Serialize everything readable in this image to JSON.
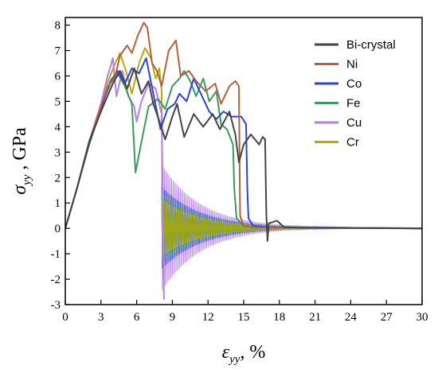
{
  "chart_data": {
    "type": "line",
    "title": "",
    "xlabel": {
      "symbol": "ε",
      "sub": "yy",
      "unit": ", %"
    },
    "ylabel": {
      "symbol": "σ",
      "sub": "yy",
      "unit": " , GPa"
    },
    "xlim": [
      0,
      30
    ],
    "ylim": [
      -3,
      8.3
    ],
    "xticks": [
      0,
      3,
      6,
      9,
      12,
      15,
      18,
      21,
      24,
      27,
      30
    ],
    "yticks": [
      -3,
      -2,
      -1,
      0,
      1,
      2,
      3,
      4,
      5,
      6,
      7,
      8
    ],
    "grid": false,
    "legend_position": "top-right",
    "series": [
      {
        "name": "Bi-crystal",
        "color": "#444444",
        "points": [
          [
            0,
            0
          ],
          [
            1,
            1.6
          ],
          [
            2,
            3.4
          ],
          [
            3,
            4.6
          ],
          [
            4,
            5.7
          ],
          [
            4.6,
            6.2
          ],
          [
            5.2,
            5.5
          ],
          [
            5.8,
            6.3
          ],
          [
            6.4,
            5.3
          ],
          [
            7,
            5.8
          ],
          [
            7.4,
            4.9
          ],
          [
            8,
            4.1
          ],
          [
            8.4,
            3.5
          ],
          [
            9,
            4.4
          ],
          [
            9.4,
            4.9
          ],
          [
            10,
            3.6
          ],
          [
            10.8,
            4.5
          ],
          [
            11.6,
            4.0
          ],
          [
            12.4,
            4.5
          ],
          [
            13,
            3.9
          ],
          [
            13.8,
            4.6
          ],
          [
            14.3,
            3.7
          ],
          [
            14.6,
            2.6
          ],
          [
            15,
            3.3
          ],
          [
            15.6,
            3.7
          ],
          [
            16.3,
            3.3
          ],
          [
            16.6,
            3.6
          ],
          [
            16.8,
            3.5
          ],
          [
            16.9,
            0.6
          ],
          [
            17,
            -0.5
          ],
          [
            17.1,
            0.2
          ],
          [
            17.8,
            0.3
          ],
          [
            18.4,
            0.05
          ],
          [
            20,
            0.02
          ],
          [
            30,
            0
          ]
        ]
      },
      {
        "name": "Ni",
        "color": "#b5603c",
        "points": [
          [
            0,
            0
          ],
          [
            1,
            1.6
          ],
          [
            2,
            3.4
          ],
          [
            3,
            4.8
          ],
          [
            3.6,
            5.6
          ],
          [
            4.2,
            6.0
          ],
          [
            4.6,
            6.8
          ],
          [
            5.2,
            7.2
          ],
          [
            5.6,
            6.9
          ],
          [
            6.1,
            7.6
          ],
          [
            6.6,
            8.1
          ],
          [
            6.9,
            7.9
          ],
          [
            7.3,
            6.5
          ],
          [
            7.7,
            6.2
          ],
          [
            8.1,
            5.6
          ],
          [
            8.7,
            7.0
          ],
          [
            9.3,
            7.4
          ],
          [
            9.7,
            6.0
          ],
          [
            10.4,
            6.2
          ],
          [
            11,
            5.8
          ],
          [
            11.8,
            5.4
          ],
          [
            12.6,
            5.7
          ],
          [
            13.1,
            4.9
          ],
          [
            13.8,
            5.6
          ],
          [
            14.3,
            5.8
          ],
          [
            14.6,
            5.6
          ],
          [
            14.7,
            0.5
          ],
          [
            15,
            0.1
          ],
          [
            16,
            0.05
          ],
          [
            30,
            0
          ]
        ]
      },
      {
        "name": "Co",
        "color": "#2c42d9",
        "points": [
          [
            0,
            0
          ],
          [
            1,
            1.6
          ],
          [
            2,
            3.3
          ],
          [
            3,
            4.7
          ],
          [
            3.8,
            5.8
          ],
          [
            4.4,
            6.2
          ],
          [
            5,
            5.7
          ],
          [
            5.6,
            6.3
          ],
          [
            6.2,
            6.1
          ],
          [
            6.8,
            6.7
          ],
          [
            7.4,
            5.3
          ],
          [
            8,
            3.9
          ],
          [
            8.6,
            4.7
          ],
          [
            9.2,
            4.9
          ],
          [
            9.6,
            5.3
          ],
          [
            10.2,
            5.0
          ],
          [
            10.8,
            5.9
          ],
          [
            11.5,
            5.2
          ],
          [
            12.1,
            4.6
          ],
          [
            12.7,
            4.3
          ],
          [
            13.3,
            4.6
          ],
          [
            14,
            4.4
          ],
          [
            14.8,
            4.4
          ],
          [
            15.2,
            4.1
          ],
          [
            15.3,
            1.6
          ],
          [
            15.4,
            0.4
          ],
          [
            15.8,
            0.1
          ],
          [
            17,
            0.05
          ],
          [
            30,
            0
          ]
        ]
      },
      {
        "name": "Fe",
        "color": "#3a9a5f",
        "points": [
          [
            0,
            0
          ],
          [
            1,
            1.6
          ],
          [
            2,
            3.4
          ],
          [
            3,
            4.8
          ],
          [
            3.8,
            5.7
          ],
          [
            4.4,
            6.1
          ],
          [
            5,
            5.6
          ],
          [
            5.6,
            4.9
          ],
          [
            5.9,
            2.2
          ],
          [
            6.4,
            3.4
          ],
          [
            7,
            4.8
          ],
          [
            7.8,
            5.1
          ],
          [
            8.4,
            4.7
          ],
          [
            9,
            5.6
          ],
          [
            9.6,
            5.9
          ],
          [
            10,
            6.2
          ],
          [
            10.5,
            5.8
          ],
          [
            11,
            5.2
          ],
          [
            11.6,
            5.9
          ],
          [
            12.1,
            5.0
          ],
          [
            12.7,
            5.4
          ],
          [
            13.1,
            4.1
          ],
          [
            13.6,
            3.9
          ],
          [
            14.1,
            3.3
          ],
          [
            14.2,
            1.6
          ],
          [
            14.4,
            0.4
          ],
          [
            15,
            0.1
          ],
          [
            16,
            0.05
          ],
          [
            30,
            0
          ]
        ]
      },
      {
        "name": "Cu",
        "color": "#b57ee8",
        "points": [
          [
            0,
            0
          ],
          [
            1,
            1.6
          ],
          [
            2,
            3.4
          ],
          [
            3,
            4.9
          ],
          [
            3.5,
            5.9
          ],
          [
            4,
            6.7
          ],
          [
            4.3,
            5.2
          ],
          [
            4.8,
            6.2
          ],
          [
            5.3,
            5.2
          ],
          [
            5.8,
            4.8
          ],
          [
            6,
            4.2
          ],
          [
            6.4,
            5.0
          ],
          [
            7,
            5.7
          ],
          [
            7.6,
            5.5
          ],
          [
            8.1,
            4.5
          ],
          [
            8.3,
            -2.8
          ]
        ]
      },
      {
        "name": "Cr",
        "color": "#b3ad0a",
        "points": [
          [
            0,
            0
          ],
          [
            1,
            1.6
          ],
          [
            2,
            3.4
          ],
          [
            3,
            4.8
          ],
          [
            3.6,
            5.8
          ],
          [
            4.2,
            6.5
          ],
          [
            4.6,
            6.9
          ],
          [
            5.1,
            6.2
          ],
          [
            5.6,
            5.3
          ],
          [
            6.2,
            6.5
          ],
          [
            6.7,
            7.1
          ],
          [
            7.2,
            6.7
          ],
          [
            7.6,
            5.9
          ],
          [
            7.9,
            6.3
          ],
          [
            8.1,
            5.4
          ],
          [
            8.2,
            -1.0
          ]
        ]
      }
    ],
    "oscillation": {
      "start_x": 8.1,
      "end_x": 30,
      "amplitude_at_start": 2.5,
      "decay_per_percent": 0.3
    }
  }
}
